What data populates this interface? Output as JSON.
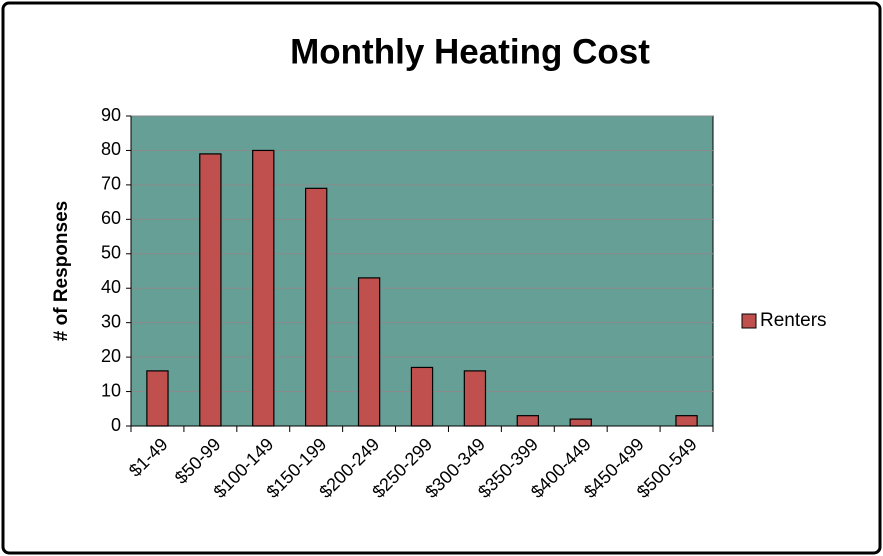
{
  "chart_data": {
    "type": "bar",
    "title": "Monthly Heating Cost",
    "y_label": "# of Responses",
    "categories": [
      "$1-49",
      "$50-99",
      "$100-149",
      "$150-199",
      "$200-249",
      "$250-299",
      "$300-349",
      "$350-399",
      "$400-449",
      "$450-499",
      "$500-549"
    ],
    "series": [
      {
        "name": "Renters",
        "color": "#c0504d",
        "values": [
          16,
          79,
          80,
          69,
          43,
          17,
          16,
          3,
          2,
          0,
          3
        ]
      }
    ],
    "ylim": [
      0,
      90
    ],
    "yticks": [
      0,
      10,
      20,
      30,
      40,
      50,
      60,
      70,
      80,
      90
    ],
    "grid": true,
    "legend": "right",
    "plot_background": "#669f96"
  }
}
